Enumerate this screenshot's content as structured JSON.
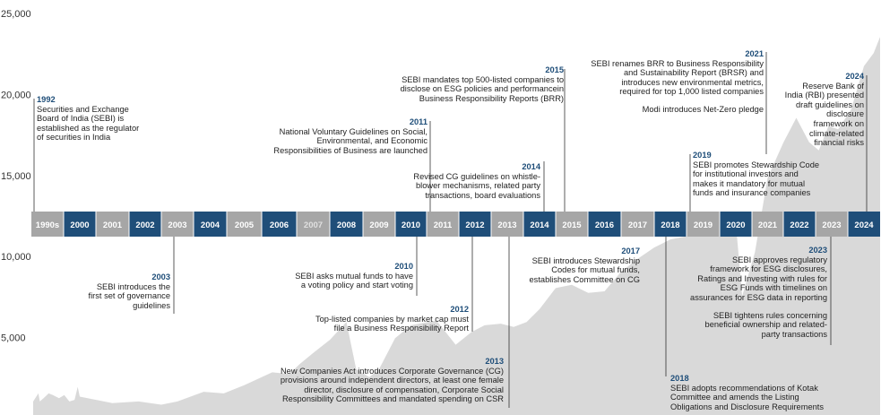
{
  "chart_data": {
    "type": "area",
    "title": "",
    "xlabel": "",
    "ylabel": "",
    "ylim": [
      0,
      25000
    ],
    "yticks": [
      "25,000",
      "20,000",
      "15,000",
      "10,000",
      "5,000"
    ],
    "ytick_values": [
      25000,
      20000,
      15000,
      10000,
      5000
    ],
    "grid": false,
    "legend": "none",
    "colors": {
      "area": "#d9d9d9",
      "band_dark": "#1f4e79",
      "band_light": "#a6a6a6",
      "band_text": "#ffffff",
      "year_label": "#1f4e79",
      "connector": "#333333"
    },
    "timeline_labels": [
      "1990s",
      "2000",
      "2001",
      "2002",
      "2003",
      "2004",
      "2005",
      "2006",
      "2007",
      "2008",
      "2009",
      "2010",
      "2011",
      "2012",
      "2013",
      "2014",
      "2015",
      "2016",
      "2017",
      "2018",
      "2019",
      "2020",
      "2021",
      "2022",
      "2023",
      "2024"
    ],
    "timeline_dark": [
      false,
      true,
      false,
      true,
      false,
      true,
      false,
      true,
      false,
      true,
      false,
      true,
      false,
      true,
      false,
      true,
      false,
      true,
      false,
      true,
      false,
      true,
      false,
      true,
      false,
      true
    ],
    "timeline_muted": [
      "2007"
    ],
    "series": [
      {
        "x": [
          1991.0,
          1992.0,
          1992.3,
          1993.0,
          1994.0,
          1994.8,
          1996.0,
          1997.0,
          1998.0,
          1999.0,
          1999.6,
          2000.0,
          2001.0,
          2001.8,
          2002.5,
          2003.0,
          2003.8,
          2004.4,
          2005.0,
          2005.8,
          2006.3,
          2006.6,
          2007.0,
          2007.5,
          2008.0,
          2008.3,
          2008.7,
          2009.0,
          2009.5,
          2010.0,
          2010.8,
          2011.4,
          2011.9,
          2012.3,
          2012.8,
          2013.2,
          2013.6,
          2014.0,
          2014.5,
          2015.0,
          2015.5,
          2016.0,
          2016.5,
          2017.0,
          2017.5,
          2018.0,
          2018.5,
          2019.0,
          2019.5,
          2020.0,
          2020.2,
          2020.6,
          2021.0,
          2021.5,
          2021.9,
          2022.3,
          2022.6,
          2022.9,
          2023.2,
          2023.6,
          2024.0,
          2024.3,
          2024.5
        ],
        "values": [
          1000,
          1500,
          1000,
          1200,
          1500,
          1400,
          1200,
          1400,
          1000,
          1100,
          1900,
          1300,
          900,
          1000,
          800,
          1000,
          1600,
          1500,
          2000,
          2800,
          2700,
          3300,
          4000,
          4800,
          5900,
          3000,
          2500,
          3000,
          4900,
          5700,
          6000,
          4500,
          5300,
          5700,
          5800,
          5600,
          5900,
          6700,
          8000,
          8200,
          7700,
          7800,
          9000,
          9800,
          10500,
          11000,
          11200,
          11400,
          12000,
          12000,
          7500,
          10200,
          14800,
          17000,
          18500,
          17000,
          16500,
          18000,
          17800,
          19000,
          21700,
          22500,
          23500
        ]
      }
    ],
    "annotations": [
      {
        "year": "1992",
        "text": "Securities and Exchange\nBoard of India (SEBI) is\nestablished as the regulator\nof securities in India",
        "text2": ""
      },
      {
        "year": "2003",
        "text": "SEBI introduces the\nfirst set of governance\nguidelines",
        "text2": ""
      },
      {
        "year": "2010",
        "text": "SEBI asks mutual funds to have\na voting policy and start voting",
        "text2": ""
      },
      {
        "year": "2011",
        "text": "National Voluntary Guidelines on Social,\nEnvironmental, and Economic\nResponsibilities of Business are launched",
        "text2": ""
      },
      {
        "year": "2012",
        "text": "Top-listed companies by market cap must\nfile a Business Responsibility Report",
        "text2": ""
      },
      {
        "year": "2013",
        "text": "New Companies Act introduces Corporate Governance (CG)\nprovisions around independent directors, at least one female\ndirector, disclosure of compensation, Corporate Social\nResponsibility Committees and mandated spending on CSR",
        "text2": ""
      },
      {
        "year": "2014",
        "text": "Revised CG guidelines on whistle-\nblower mechanisms, related party\ntransactions, board evaluations",
        "text2": ""
      },
      {
        "year": "2015",
        "text": "SEBI mandates top 500-listed companies to\ndisclose on ESG policies and performancein\nBusiness Responsibility Reports (BRR)",
        "text2": ""
      },
      {
        "year": "2017",
        "text": "SEBI introduces Stewardship\nCodes for mutual funds,\nestablishes Committee on CG",
        "text2": ""
      },
      {
        "year": "2018",
        "text": "SEBI adopts recommendations of Kotak\nCommittee and amends the Listing\nObligations and Disclosure Requirements",
        "text2": ""
      },
      {
        "year": "2019",
        "text": "SEBI promotes Stewardship Code\nfor institutional investors and\nmakes it mandatory for mutual\nfunds and insurance companies",
        "text2": ""
      },
      {
        "year": "2021",
        "text": "SEBI renames BRR to Business Responsibility\nand Sustainability Report (BRSR) and\nintroduces new environmental metrics,\nrequired for top 1,000 listed companies",
        "text2": "Modi introduces Net-Zero pledge"
      },
      {
        "year": "2023",
        "text": "SEBI approves regulatory\nframework for ESG disclosures,\nRatings and Investing with rules for\nESG Funds with timelines on\nassurances for ESG data in reporting",
        "text2": "SEBI tightens rules concerning\nbeneficial ownership and related-\nparty transactions"
      },
      {
        "year": "2024",
        "text": "Reserve Bank of\nIndia (RBI) presented\ndraft guidelines on\ndisclosure\nframework on\nclimate-related\nfinancial risks",
        "text2": ""
      }
    ]
  }
}
